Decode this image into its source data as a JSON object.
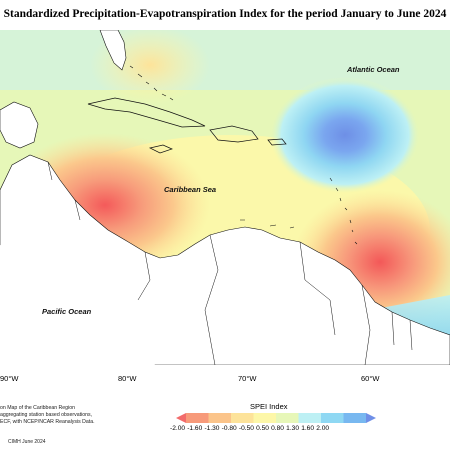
{
  "title": "Standardized Precipitation-Evapotranspiration Index for the period January to June 2024",
  "labels": {
    "atlantic": "Atlantic Ocean",
    "caribbean": "Caribbean Sea",
    "pacific": "Pacific Ocean"
  },
  "longitude_ticks": [
    "90°W",
    "80°W",
    "70°W",
    "60°W"
  ],
  "legend": {
    "title": "SPEI Index",
    "ticks": [
      "-2.00",
      "-1.60",
      "-1.30",
      "-0.80",
      "-0.50",
      "0.50",
      "0.80",
      "1.30",
      "1.60",
      "2.00"
    ],
    "colors": [
      "#f26b6b",
      "#f79a7a",
      "#fbc48a",
      "#fde39a",
      "#fdf7a8",
      "#e7f7b8",
      "#bdf0f4",
      "#8fd8f3",
      "#78b8f0",
      "#6f8fe7"
    ]
  },
  "notes": [
    "on Map of the Caribbean Region",
    "aggregating station based observations,",
    "ECF, with NCEP/NCAR Reanalysis Data."
  ],
  "credit": "CIMH June 2024"
}
